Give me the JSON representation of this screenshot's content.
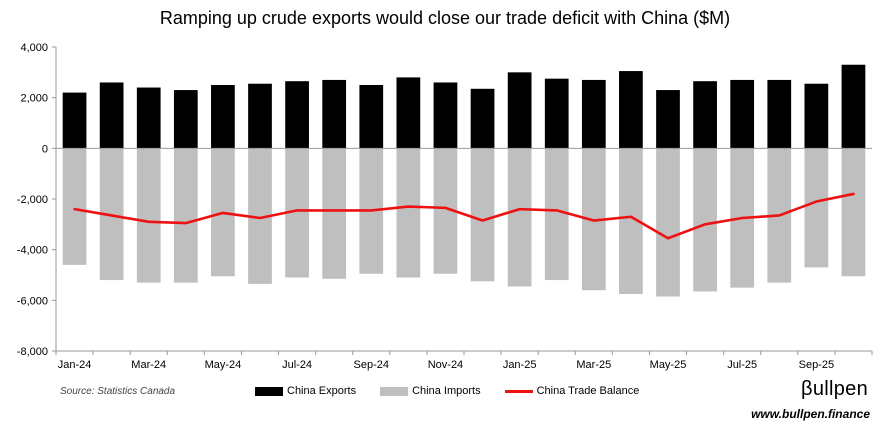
{
  "chart_data": {
    "type": "bar",
    "title": "Ramping up crude exports would close our trade deficit with China ($M)",
    "categories": [
      "Jan-24",
      "Feb-24",
      "Mar-24",
      "Apr-24",
      "May-24",
      "Jun-24",
      "Jul-24",
      "Aug-24",
      "Sep-24",
      "Oct-24",
      "Nov-24",
      "Dec-24",
      "Jan-25",
      "Feb-25",
      "Mar-25",
      "Apr-25",
      "May-25",
      "Jun-25",
      "Jul-25",
      "Aug-25",
      "Sep-25",
      "Oct-25"
    ],
    "tick_labels": [
      "Jan-24",
      "Mar-24",
      "May-24",
      "Jul-24",
      "Sep-24",
      "Nov-24",
      "Jan-25",
      "Mar-25",
      "May-25",
      "Jul-25",
      "Sep-25"
    ],
    "series": [
      {
        "name": "China Exports",
        "kind": "bar",
        "color": "#000000",
        "values": [
          2200,
          2600,
          2400,
          2300,
          2500,
          2550,
          2650,
          2700,
          2500,
          2800,
          2600,
          2350,
          3000,
          2750,
          2700,
          3050,
          2300,
          2650,
          2700,
          2700,
          2550,
          3300
        ]
      },
      {
        "name": "China Imports",
        "kind": "bar",
        "color": "#bfbfbf",
        "values": [
          -4600,
          -5200,
          -5300,
          -5300,
          -5050,
          -5350,
          -5100,
          -5150,
          -4950,
          -5100,
          -4950,
          -5250,
          -5450,
          -5200,
          -5600,
          -5750,
          -5850,
          -5650,
          -5500,
          -5300,
          -4700,
          -5050
        ]
      },
      {
        "name": "China Trade Balance",
        "kind": "line",
        "color": "#ee1111",
        "values": [
          -2400,
          -2650,
          -2900,
          -2950,
          -2550,
          -2750,
          -2450,
          -2450,
          -2450,
          -2300,
          -2350,
          -2850,
          -2400,
          -2450,
          -2850,
          -2700,
          -3550,
          -3000,
          -2750,
          -2650,
          -2100,
          -1800
        ]
      }
    ],
    "y_ticks": [
      4000,
      2000,
      0,
      -2000,
      -4000,
      -6000,
      -8000
    ],
    "y_tick_labels": [
      "4,000",
      "2,000",
      "0",
      "-2,000",
      "-4,000",
      "-6,000",
      "-8,000"
    ],
    "ylim": [
      -8000,
      4000
    ],
    "xlabel": "",
    "ylabel": "",
    "legend_position": "bottom-center"
  },
  "footer": {
    "source": "Source: Statistics Canada",
    "brand": "βullpen",
    "url": "www.bullpen.finance"
  }
}
